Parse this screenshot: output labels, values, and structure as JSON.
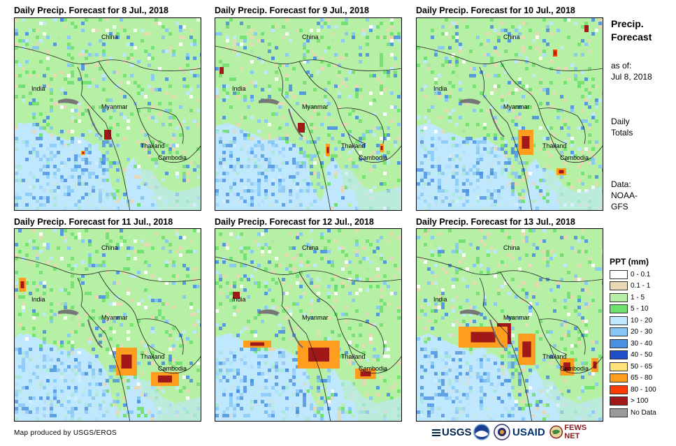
{
  "panels": [
    {
      "title": "Daily Precip. Forecast for 8 Jul., 2018"
    },
    {
      "title": "Daily Precip. Forecast for 9 Jul., 2018"
    },
    {
      "title": "Daily Precip. Forecast for 10 Jul., 2018"
    },
    {
      "title": "Daily Precip. Forecast for 11 Jul., 2018"
    },
    {
      "title": "Daily Precip. Forecast for 12 Jul., 2018"
    },
    {
      "title": "Daily Precip. Forecast for 13 Jul., 2018"
    }
  ],
  "map_labels": {
    "china": "China",
    "india": "India",
    "myanmar": "Myanmar",
    "thailand": "Thailand",
    "cambodia": "Cambodia"
  },
  "sidebar": {
    "heading_line1": "Precip.",
    "heading_line2": "Forecast",
    "asof_line1": "as of:",
    "asof_line2": "Jul 8, 2018",
    "totals_line1": "Daily",
    "totals_line2": "Totals",
    "data_line1": "Data:",
    "data_line2": "NOAA-",
    "data_line3": "GFS"
  },
  "legend": {
    "title": "PPT (mm)",
    "items": [
      {
        "label": "0 - 0.1",
        "color": "#ffffff"
      },
      {
        "label": "0.1 - 1",
        "color": "#e8d8b4"
      },
      {
        "label": "1 - 5",
        "color": "#b5f0a5"
      },
      {
        "label": "5 - 10",
        "color": "#6ee06e"
      },
      {
        "label": "10 - 20",
        "color": "#bfe8ff"
      },
      {
        "label": "20 - 30",
        "color": "#85c6f5"
      },
      {
        "label": "30 - 40",
        "color": "#4a90e0"
      },
      {
        "label": "40 - 50",
        "color": "#1f4fc8"
      },
      {
        "label": "50 - 65",
        "color": "#ffe27a"
      },
      {
        "label": "65 - 80",
        "color": "#ff9d1f"
      },
      {
        "label": "80 - 100",
        "color": "#ff3c00"
      },
      {
        "label": "> 100",
        "color": "#a01818"
      },
      {
        "label": "No Data",
        "color": "#9a9a9a"
      }
    ]
  },
  "footer": {
    "credit": "Map produced by USGS/EROS"
  },
  "logos": {
    "usgs": "USGS",
    "usaid": "USAID",
    "fewsnet": "FEWS NET"
  }
}
